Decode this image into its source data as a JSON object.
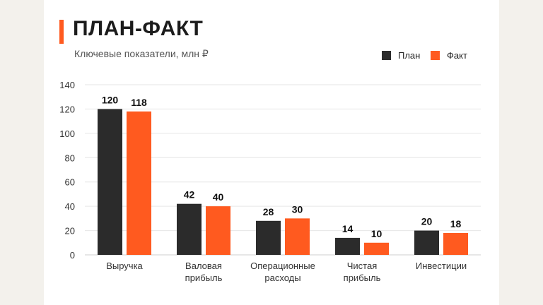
{
  "header": {
    "title": "ПЛАН-ФАКТ",
    "subtitle": "Ключевые показатели, млн ₽"
  },
  "colors": {
    "plan": "#2b2b2b",
    "fact": "#ff5a1f",
    "accent": "#ff5a1f"
  },
  "chart_data": {
    "type": "bar",
    "title": "ПЛАН-ФАКТ",
    "subtitle": "Ключевые показатели, млн ₽",
    "categories": [
      [
        "Выручка"
      ],
      [
        "Валовая",
        "прибыль"
      ],
      [
        "Операционные",
        "расходы"
      ],
      [
        "Чистая",
        "прибыль"
      ],
      [
        "Инвестиции"
      ]
    ],
    "series": [
      {
        "name": "План",
        "values": [
          120,
          42,
          28,
          14,
          20
        ]
      },
      {
        "name": "Факт",
        "values": [
          118,
          40,
          30,
          10,
          18
        ]
      }
    ],
    "ylim": [
      0,
      140
    ],
    "yticks": [
      0,
      20,
      40,
      60,
      80,
      100,
      120,
      140
    ],
    "grid": true,
    "legend": "top-right"
  }
}
